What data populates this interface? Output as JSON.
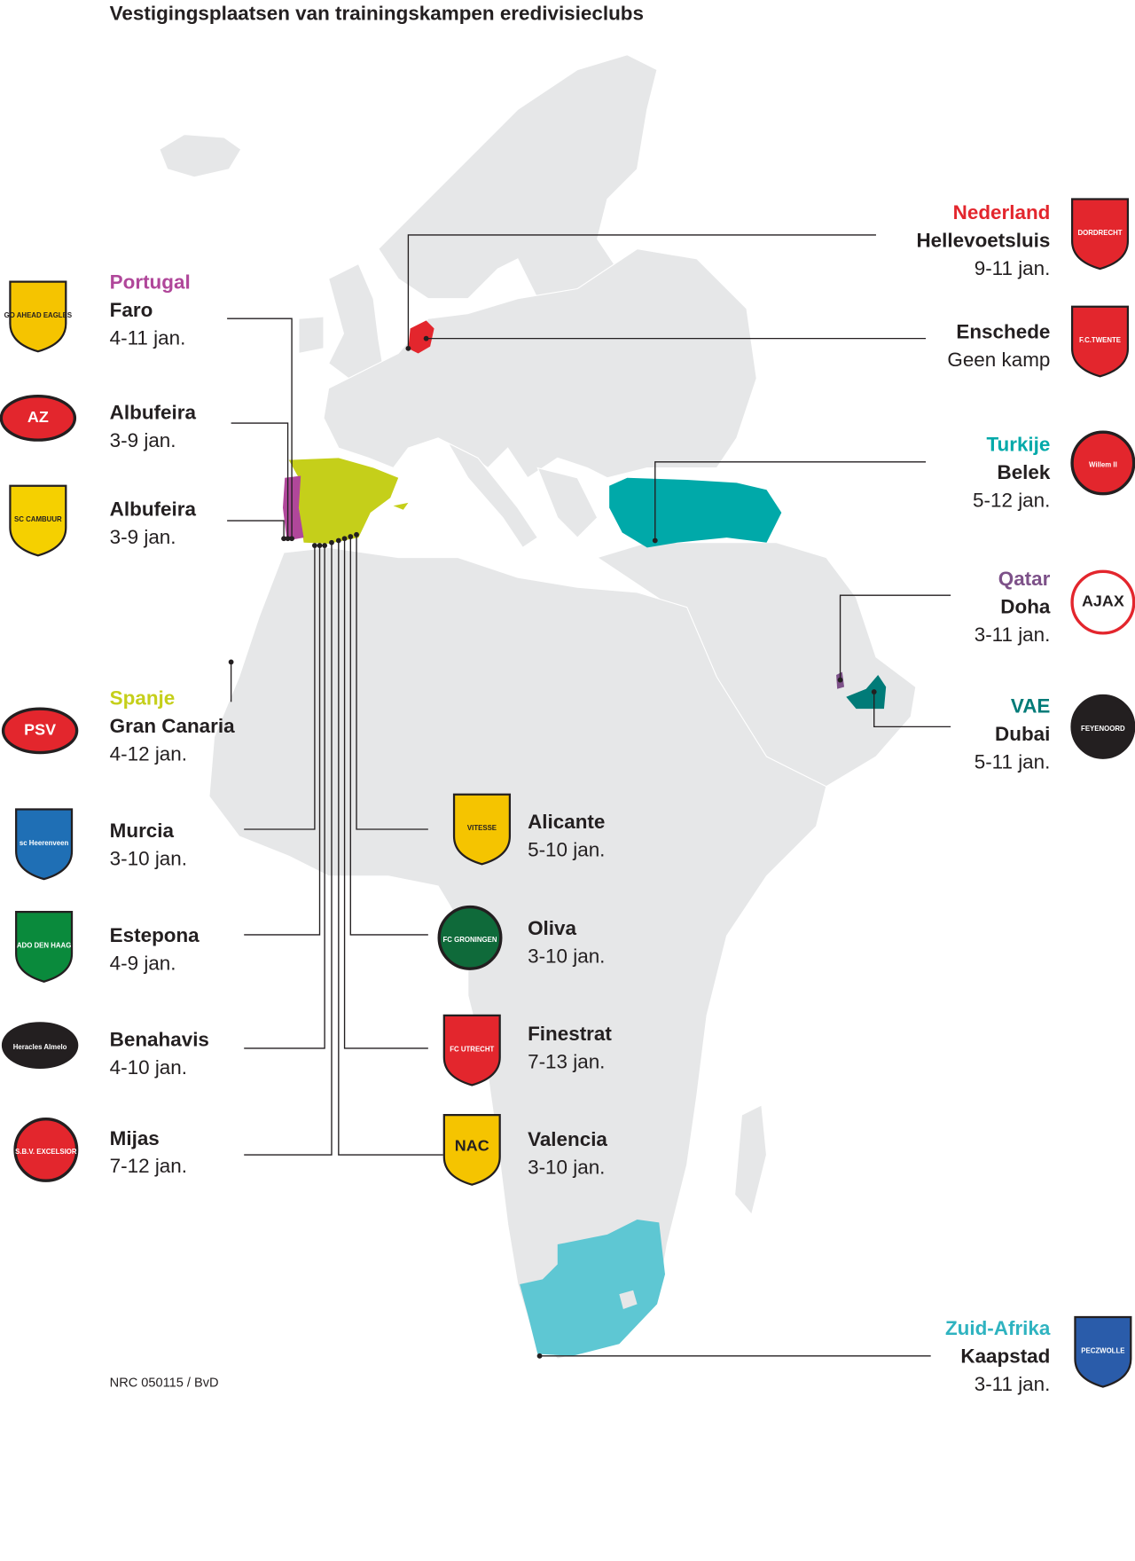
{
  "title": "Vestigingsplaatsen van trainingskampen eredivisieclubs",
  "credit": "NRC 050115 / BvD",
  "colors": {
    "land": "#e6e7e8",
    "nederland": "#e3262d",
    "portugal": "#b0479a",
    "spanje": "#c5cf1a",
    "turkije": "#00a9a9",
    "qatar": "#7d5189",
    "vae": "#007b78",
    "zuid_afrika": "#5ec7d3"
  },
  "labels": [
    {
      "country": "Nederland",
      "country_color": "#e3262d",
      "city": "Hellevoetsluis",
      "date": "9-11 jan.",
      "side": "right",
      "logo": {
        "text": "DORDRECHT",
        "fill": "#e3262d",
        "shape": "shield"
      }
    },
    {
      "city": "Enschede",
      "date": "Geen kamp",
      "side": "right",
      "logo": {
        "text": "F.C.TWENTE",
        "fill": "#e3262d",
        "shape": "shield"
      }
    },
    {
      "country": "Turkije",
      "country_color": "#00a9a9",
      "city": "Belek",
      "date": "5-12 jan.",
      "side": "right",
      "logo": {
        "text": "Willem II",
        "fill": "#e3262d",
        "shape": "circle"
      }
    },
    {
      "country": "Qatar",
      "country_color": "#7d5189",
      "city": "Doha",
      "date": "3-11 jan.",
      "side": "right",
      "logo": {
        "text": "AJAX",
        "fill": "#ffffff",
        "shape": "circle"
      }
    },
    {
      "country": "VAE",
      "country_color": "#007b78",
      "city": "Dubai",
      "date": "5-11 jan.",
      "side": "right",
      "logo": {
        "text": "FEYENOORD",
        "fill": "#231f20",
        "shape": "circle"
      }
    },
    {
      "country": "Zuid-Afrika",
      "country_color": "#2fb3c0",
      "city": "Kaapstad",
      "date": "3-11 jan.",
      "side": "right",
      "logo": {
        "text": "PECZWOLLE",
        "fill": "#2a5caa",
        "shape": "shield"
      }
    },
    {
      "country": "Portugal",
      "country_color": "#b0479a",
      "city": "Faro",
      "date": "4-11 jan.",
      "side": "left",
      "logo": {
        "text": "GO AHEAD EAGLES",
        "fill": "#f5c400",
        "shape": "shield"
      }
    },
    {
      "city": "Albufeira",
      "date": "3-9 jan.",
      "side": "left",
      "logo": {
        "text": "AZ",
        "fill": "#e3262d",
        "shape": "oval"
      }
    },
    {
      "city": "Albufeira",
      "date": "3-9 jan.",
      "side": "left",
      "logo": {
        "text": "SC CAMBUUR",
        "fill": "#f5d000",
        "shape": "shield"
      }
    },
    {
      "country": "Spanje",
      "country_color": "#c5cf1a",
      "city": "Gran Canaria",
      "date": "4-12 jan.",
      "side": "left",
      "logo": {
        "text": "PSV",
        "fill": "#e3262d",
        "shape": "oval"
      }
    },
    {
      "city": "Murcia",
      "date": "3-10 jan.",
      "side": "left",
      "logo": {
        "text": "sc Heerenveen",
        "fill": "#1f6fb5",
        "shape": "shield"
      }
    },
    {
      "city": "Estepona",
      "date": "4-9 jan.",
      "side": "left",
      "logo": {
        "text": "ADO DEN HAAG",
        "fill": "#0a8a3c",
        "shape": "shield"
      }
    },
    {
      "city": "Benahavis",
      "date": "4-10 jan.",
      "side": "left",
      "logo": {
        "text": "Heracles Almelo",
        "fill": "#231f20",
        "shape": "oval"
      }
    },
    {
      "city": "Mijas",
      "date": "7-12 jan.",
      "side": "left",
      "logo": {
        "text": "S.B.V. EXCELSIOR",
        "fill": "#e3262d",
        "shape": "circle"
      }
    },
    {
      "city": "Alicante",
      "date": "5-10 jan.",
      "side": "center",
      "logo": {
        "text": "VITESSE",
        "fill": "#f5c400",
        "shape": "shield"
      }
    },
    {
      "city": "Oliva",
      "date": "3-10 jan.",
      "side": "center",
      "logo": {
        "text": "FC GRONINGEN",
        "fill": "#0f6a3a",
        "shape": "circle"
      }
    },
    {
      "city": "Finestrat",
      "date": "7-13 jan.",
      "side": "center",
      "logo": {
        "text": "FC UTRECHT",
        "fill": "#e3262d",
        "shape": "shield"
      }
    },
    {
      "city": "Valencia",
      "date": "3-10 jan.",
      "side": "center",
      "logo": {
        "text": "NAC",
        "fill": "#f5c400",
        "shape": "shield"
      }
    }
  ]
}
